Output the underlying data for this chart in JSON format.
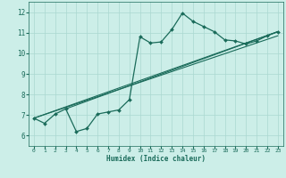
{
  "xlabel": "Humidex (Indice chaleur)",
  "bg_color": "#cceee8",
  "grid_color": "#aad8d0",
  "line_color": "#1a6b5a",
  "tick_color": "#1a6b5a",
  "xlim": [
    -0.5,
    23.5
  ],
  "ylim": [
    5.5,
    12.5
  ],
  "xticks": [
    0,
    1,
    2,
    3,
    4,
    5,
    6,
    7,
    8,
    9,
    10,
    11,
    12,
    13,
    14,
    15,
    16,
    17,
    18,
    19,
    20,
    21,
    22,
    23
  ],
  "yticks": [
    6,
    7,
    8,
    9,
    10,
    11,
    12
  ],
  "main_x": [
    0,
    1,
    2,
    3,
    4,
    5,
    6,
    7,
    8,
    9,
    10,
    11,
    12,
    13,
    14,
    15,
    16,
    17,
    18,
    19,
    20,
    21,
    22,
    23
  ],
  "main_y": [
    6.85,
    6.6,
    7.05,
    7.3,
    6.2,
    6.35,
    7.05,
    7.15,
    7.25,
    7.75,
    10.8,
    10.5,
    10.55,
    11.15,
    11.95,
    11.55,
    11.3,
    11.05,
    10.65,
    10.6,
    10.45,
    10.6,
    10.85,
    11.05
  ],
  "line1_x": [
    0,
    23
  ],
  "line1_y": [
    6.85,
    11.05
  ],
  "line2_x": [
    0,
    23
  ],
  "line2_y": [
    6.85,
    10.85
  ],
  "line3_x": [
    3,
    23
  ],
  "line3_y": [
    7.3,
    11.05
  ]
}
